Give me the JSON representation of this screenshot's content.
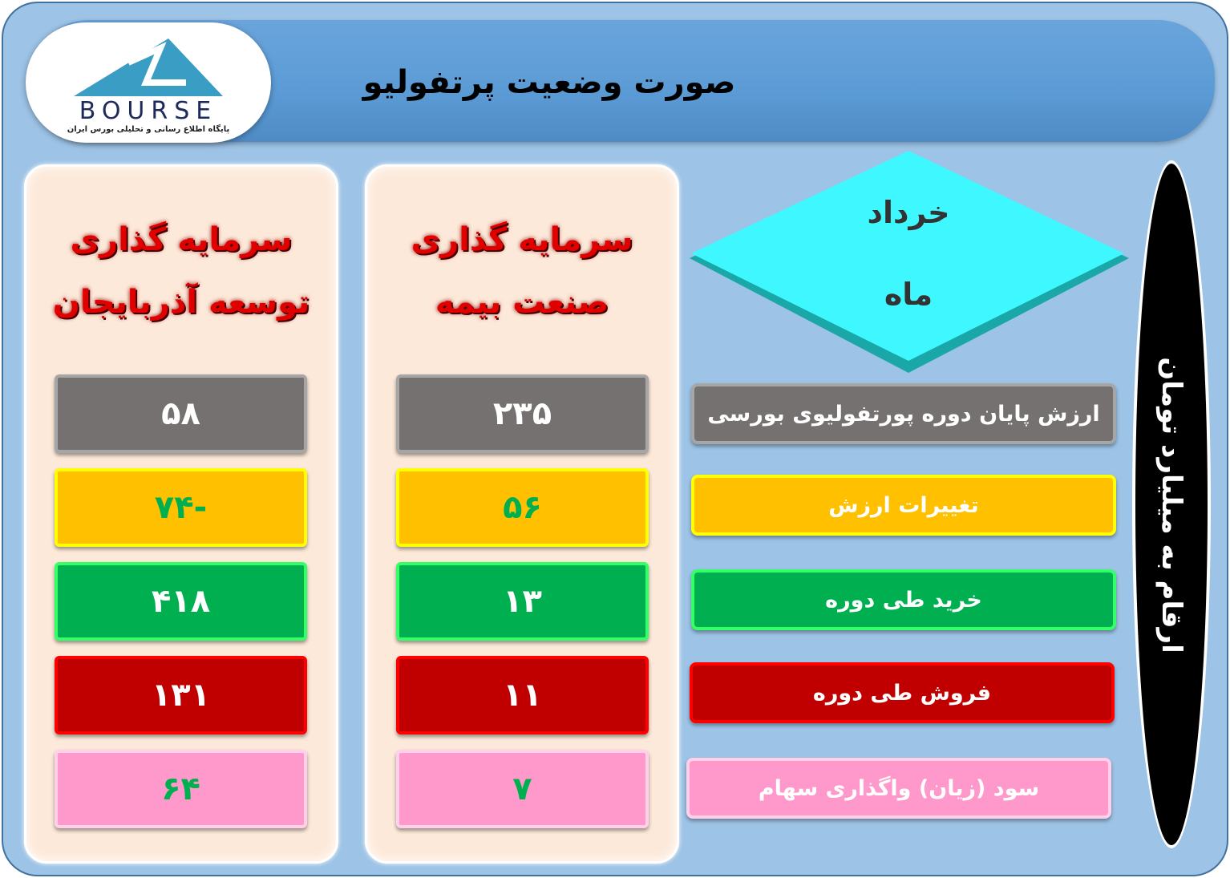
{
  "title": "صورت وضعیت پرتفولیو",
  "logo": {
    "brand": "BOURSE",
    "tagline": "پایگاه اطلاع رسانی و تحلیلی بورس ایران"
  },
  "period": {
    "month": "خرداد",
    "label": "ماه"
  },
  "unit_note": "ارقام به میلیارد تومان",
  "row_labels": [
    "ارزش پایان دوره پورتفولیوی بورسی",
    "تغییرات ارزش",
    "خرید طی دوره",
    "فروش طی دوره",
    "سود (زیان) واگذاری سهام"
  ],
  "companies": [
    {
      "line1": "سرمایه گذاری",
      "line2": "صنعت بیمه",
      "values": [
        "۲۳۵",
        "۵۶",
        "۱۳",
        "۱۱",
        "۷"
      ]
    },
    {
      "line1": "سرمایه گذاری",
      "line2": "توسعه آذربایجان",
      "values": [
        "۵۸",
        "-۷۴",
        "۴۱۸",
        "۱۳۱",
        "۶۴"
      ]
    }
  ],
  "colors": {
    "value": "#767171",
    "change": "#ffc000",
    "buy": "#00b050",
    "sell": "#c00000",
    "profit": "#ff99cc",
    "diamond": "#3ff8ff"
  }
}
